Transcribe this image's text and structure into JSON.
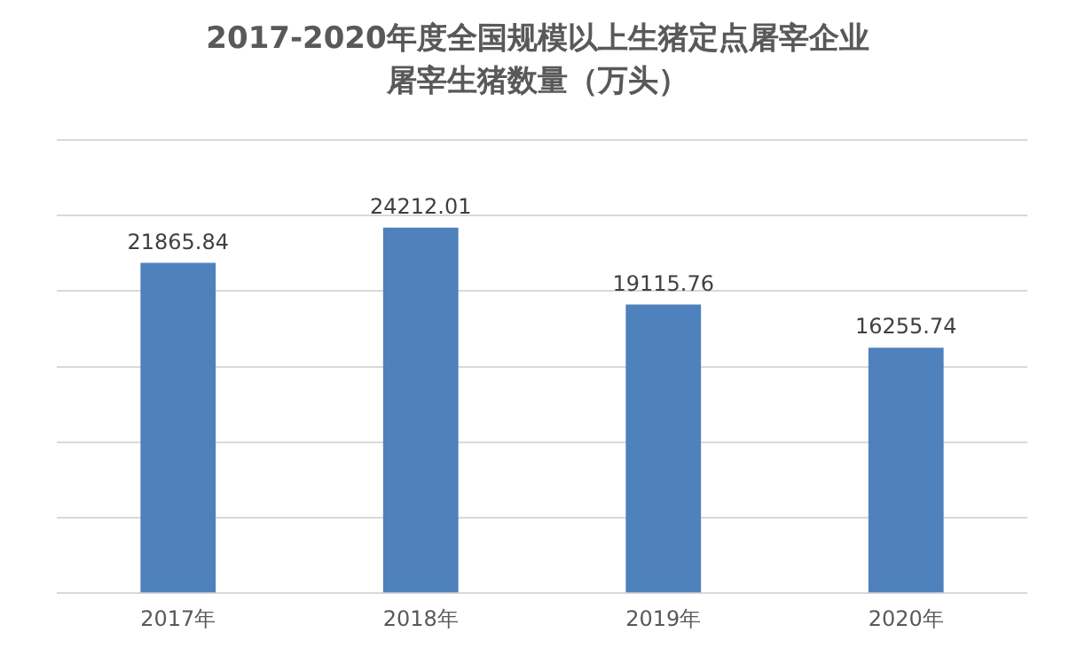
{
  "chart_data": {
    "type": "bar",
    "title": "2017-2020年度全国规模以上生猪定点屠宰企业屠宰生猪数量（万头）",
    "categories": [
      "2017年",
      "2018年",
      "2019年",
      "2020年"
    ],
    "values": [
      21865.84,
      24212.01,
      19115.76,
      16255.74
    ],
    "color": "#4f81bd",
    "ylim": [
      0,
      30000
    ],
    "yticks": [
      {
        "value": 0,
        "label": null
      },
      {
        "value": 5000,
        "label": null
      },
      {
        "value": 10000,
        "label": null
      },
      {
        "value": 15000,
        "label": null
      },
      {
        "value": 20000,
        "label": null
      },
      {
        "value": 25000,
        "label": null
      },
      {
        "value": 30000,
        "label": null
      }
    ],
    "tick_labels": "x",
    "grid": "y",
    "data_labels": true,
    "legend": false
  }
}
